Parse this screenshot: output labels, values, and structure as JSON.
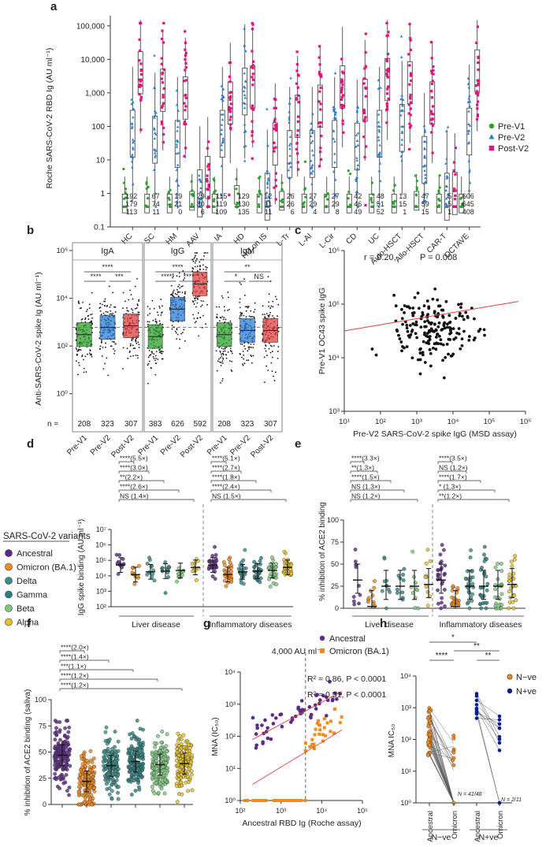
{
  "colors": {
    "green": "#2ca02c",
    "blue": "#2b7bd6",
    "pink": "#e0157a",
    "red": "#e04040",
    "purple": "#5b2a86",
    "orange": "#f28a1e",
    "teal": "#3a8f8a",
    "dteal": "#2f7f80",
    "lgreen": "#7fc97f",
    "yellow": "#e6c229",
    "navy": "#0a1f8f"
  },
  "chart_data": [
    {
      "panel": "a",
      "type": "scatter",
      "ylabel": "Roche SARS-CoV-2 RBD Ig (AU ml⁻¹)",
      "ylim": [
        0.1,
        200000
      ],
      "y_ticks": [
        "0.1",
        "1",
        "10",
        "100",
        "1,000",
        "10,000",
        "100,000"
      ],
      "categories": [
        "HC",
        "SC",
        "HM",
        "AAV",
        "IA",
        "HD",
        "HD on IS",
        "L-Tr",
        "L-AI",
        "L-Cir",
        "CD",
        "UC",
        "Auto-HSCT",
        "Allo-HSCT",
        "CAR-T",
        "OCTAVE"
      ],
      "legend": [
        "Pre-V1",
        "Pre-V2",
        "Post-V2"
      ],
      "n_post_v2": [
        "192",
        "67",
        "19",
        "29",
        "115",
        "129",
        "12",
        "26",
        "27",
        "27",
        "42",
        "48",
        "13",
        "47",
        "5",
        "606"
      ],
      "n_pre_v2": [
        "179",
        "74",
        "21",
        "30",
        "119",
        "130",
        "11",
        "26",
        "29",
        "29",
        "46",
        "51",
        "15",
        "59",
        "5",
        "645"
      ],
      "n_pre_v1": [
        "113",
        "11",
        "0",
        "6",
        "109",
        "135",
        "11",
        "6",
        "4",
        "8",
        "49",
        "52",
        "1",
        "15",
        "1",
        "408"
      ],
      "medians_pre_v1": [
        0.5,
        0.5,
        0.5,
        0.6,
        0.5,
        0.9,
        0.5,
        0.6,
        0.5,
        0.5,
        0.5,
        0.5,
        0.5,
        0.6,
        0.5,
        0.5
      ],
      "medians_pre_v2": [
        60,
        40,
        30,
        1,
        60,
        1100,
        0.8,
        15,
        15,
        30,
        25,
        60,
        90,
        10,
        0.8,
        70
      ],
      "medians_post_v2": [
        4000,
        1200,
        700,
        3,
        500,
        1500,
        30,
        200,
        400,
        1500,
        600,
        2500,
        2000,
        500,
        1,
        4500
      ]
    },
    {
      "panel": "b",
      "type": "box",
      "ylabel": "Anti-SARS-CoV-2 spike Ig (AU ml⁻¹)",
      "y_ticks": [
        "10⁰",
        "10²",
        "10⁴",
        "10⁶"
      ],
      "groups": [
        "IgA",
        "IgG",
        "IgM"
      ],
      "categories": [
        "Pre-V1",
        "Pre-V2",
        "Post-V2"
      ],
      "n_label": "n =",
      "n": [
        [
          "208",
          "323",
          "307"
        ],
        [
          "383",
          "626",
          "592"
        ],
        [
          "208",
          "323",
          "307"
        ]
      ],
      "medians": [
        [
          300,
          600,
          700
        ],
        [
          250,
          3500,
          40000
        ],
        [
          300,
          450,
          450
        ]
      ],
      "significance": [
        [
          "****",
          "****",
          "***"
        ],
        [
          "****",
          "****",
          "****"
        ],
        [
          "**",
          "*",
          "NS"
        ]
      ]
    },
    {
      "panel": "c",
      "type": "scatter",
      "annotation_r": "r = 0.20,",
      "annotation_p": "P = 0.008",
      "xlabel": "Pre-V2 SARS-CoV-2 spike IgG (MSD assay)",
      "ylabel": "Pre-V1 OC43 spike IgG",
      "x_ticks": [
        "10¹",
        "10²",
        "10³",
        "10⁴",
        "10⁵",
        "10⁶"
      ],
      "y_ticks": [
        "10³",
        "10⁴",
        "10⁵",
        "10⁶"
      ]
    },
    {
      "panel": "d",
      "type": "scatter",
      "ylabel": "IgG spike binding (AU ml⁻¹)",
      "y_ticks": [
        "10²",
        "10³",
        "10⁴",
        "10⁵",
        "10⁶",
        "10⁷"
      ],
      "groups": [
        "Liver disease",
        "Inflammatory diseases"
      ],
      "variants": [
        "Ancestral",
        "Omicron (BA.1)",
        "Delta",
        "Gamma",
        "Beta",
        "Alpha"
      ],
      "medians": [
        50000,
        12000,
        18000,
        20000,
        22000,
        35000
      ],
      "sig_liver": [
        "****(5.5×)",
        "****(3.0×)",
        "**(2.2×)",
        "****(2.6×)",
        "NS (1.4×)"
      ],
      "sig_infl": [
        "****(5.1×)",
        "****(2.7×)",
        "****(1.8×)",
        "****(2.4×)",
        "NS (1.5×)"
      ]
    },
    {
      "panel": "e",
      "type": "scatter",
      "ylabel": "% inhibition of ACE2 binding",
      "y_ticks": [
        "0",
        "25",
        "50",
        "75",
        "100"
      ],
      "groups": [
        "Liver disease",
        "Inflammatory diseases"
      ],
      "medians": [
        32,
        2,
        25,
        25,
        25,
        27
      ],
      "sig_liver": [
        "****(3.3×)",
        "**(1.3×)",
        "****(1.5×)",
        "NS (1.3×)",
        "NS (1.2×)"
      ],
      "sig_infl": [
        "****(3.5×)",
        "NS (1.2×)",
        "****(1.7×)",
        "* (1.3×)",
        "**(1.2×)"
      ]
    },
    {
      "panel": "f",
      "type": "scatter",
      "ylabel": "% inhibition of ACE2 binding (saliva)",
      "y_ticks": [
        "0",
        "25",
        "50",
        "75",
        "100"
      ],
      "medians": [
        47,
        22,
        37,
        41,
        38,
        39
      ],
      "sig": [
        "****(2.0×)",
        "****(1.4×)",
        "***(1.1×)",
        "****(1.2×)",
        "****(1.2×)"
      ]
    },
    {
      "panel": "g",
      "type": "scatter",
      "xlabel": "Ancestral RBD Ig (Roche assay)",
      "ylabel": "MNA (IC₅₀)",
      "x_ticks": [
        "10²",
        "10³",
        "10⁴",
        "10⁵"
      ],
      "y_ticks": [
        "10⁰",
        "10¹",
        "10²",
        "10³",
        "10⁴"
      ],
      "legend": [
        "Ancestral",
        "Omicron (BA.1)"
      ],
      "threshold_label": "4,000 AU ml⁻¹",
      "r2_ancestral": "R² = 0.86, P < 0.0001",
      "r2_omicron": "R² = 0.51, P < 0.0001"
    },
    {
      "panel": "h",
      "type": "scatter",
      "ylabel": "MNA IC₅₀",
      "y_ticks": [
        "10⁰",
        "10¹",
        "10²",
        "10³",
        "10⁴"
      ],
      "categories": [
        "Ancestral",
        "Omicron",
        "Ancestral",
        "Omicron"
      ],
      "groups": [
        "N−ve",
        "N+ve"
      ],
      "legend": [
        "N−ve",
        "N+ve"
      ],
      "n_neg": "N = 41/48",
      "n_pos": "N = 2/11",
      "significance": [
        "*",
        "****",
        "**",
        "**"
      ]
    }
  ],
  "panel_letters": [
    "a",
    "b",
    "c",
    "d",
    "e",
    "f",
    "g",
    "h"
  ],
  "variant_legend_title": "SARS-CoV-2 variants"
}
